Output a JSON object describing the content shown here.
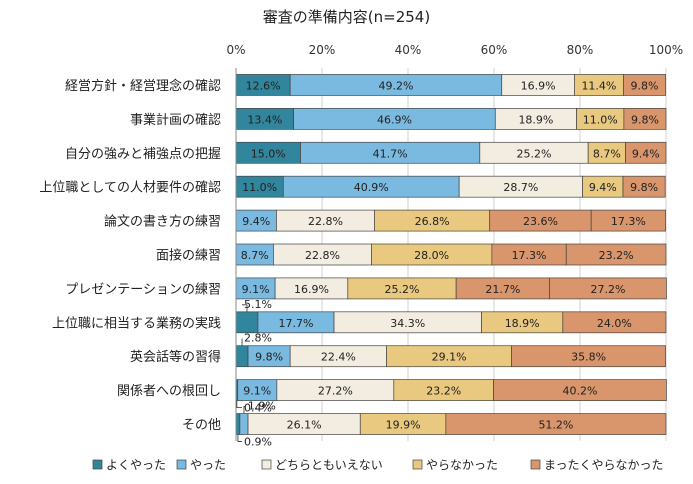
{
  "chart_data": {
    "type": "bar",
    "orientation": "horizontal",
    "stacked": true,
    "percent": true,
    "title": "審査の準備内容(n=254)",
    "xlim": [
      0,
      100
    ],
    "x_ticks": [
      "0%",
      "20%",
      "40%",
      "60%",
      "80%",
      "100%"
    ],
    "grid": true,
    "legend_position": "bottom",
    "categories": [
      "経営方針・経営理念の確認",
      "事業計画の確認",
      "自分の強みと補強点の把握",
      "上位職としての人材要件の確認",
      "論文の書き方の練習",
      "面接の練習",
      "プレゼンテーションの練習",
      "上位職に相当する業務の実践",
      "英会話等の習得",
      "関係者への根回し",
      "その他"
    ],
    "series": [
      {
        "name": "よくやった",
        "color": "#31859c",
        "values": [
          12.6,
          13.4,
          15.0,
          11.0,
          0,
          0,
          0,
          5.1,
          2.8,
          0.4,
          0.9
        ],
        "labels": [
          "12.6%",
          "13.4%",
          "15.0%",
          "11.0%",
          "",
          "",
          "",
          "5.1%",
          "2.8%",
          "0.4%",
          "0.9%"
        ]
      },
      {
        "name": "やった",
        "color": "#7ab9e0",
        "values": [
          49.2,
          46.9,
          41.7,
          40.9,
          9.4,
          8.7,
          9.1,
          17.7,
          9.8,
          9.1,
          1.9
        ],
        "labels": [
          "49.2%",
          "46.9%",
          "41.7%",
          "40.9%",
          "9.4%",
          "8.7%",
          "9.1%",
          "17.7%",
          "9.8%",
          "9.1%",
          "1.9%"
        ]
      },
      {
        "name": "どちらともいえない",
        "color": "#f2ece1",
        "values": [
          16.9,
          18.9,
          25.2,
          28.7,
          22.8,
          22.8,
          16.9,
          34.3,
          22.4,
          27.2,
          26.1
        ],
        "labels": [
          "16.9%",
          "18.9%",
          "25.2%",
          "28.7%",
          "22.8%",
          "22.8%",
          "16.9%",
          "34.3%",
          "22.4%",
          "27.2%",
          "26.1%"
        ]
      },
      {
        "name": "やらなかった",
        "color": "#e9c87f",
        "values": [
          11.4,
          11.0,
          8.7,
          9.4,
          26.8,
          28.0,
          25.2,
          18.9,
          29.1,
          23.2,
          19.9
        ],
        "labels": [
          "11.4%",
          "11.0%",
          "8.7%",
          "9.4%",
          "26.8%",
          "28.0%",
          "25.2%",
          "18.9%",
          "29.1%",
          "23.2%",
          "19.9%"
        ]
      },
      {
        "name": "まったくやらなかった",
        "color": "#d9956b",
        "values": [
          9.8,
          9.8,
          9.4,
          9.8,
          23.6,
          17.3,
          21.7,
          24.0,
          35.8,
          40.2,
          51.2
        ],
        "labels": [
          "9.8%",
          "9.8%",
          "9.4%",
          "9.8%",
          "23.6%",
          "17.3%",
          "21.7%",
          "24.0%",
          "35.8%",
          "40.2%",
          "51.2%"
        ]
      },
      {
        "name": "",
        "color": "#d9956b",
        "values": [
          0,
          0,
          0,
          0,
          17.3,
          23.2,
          27.2,
          0,
          0,
          0,
          0
        ],
        "labels": [
          "",
          "",
          "",
          "",
          "17.3%",
          "23.2%",
          "27.2%",
          "",
          "",
          "",
          ""
        ]
      }
    ]
  }
}
